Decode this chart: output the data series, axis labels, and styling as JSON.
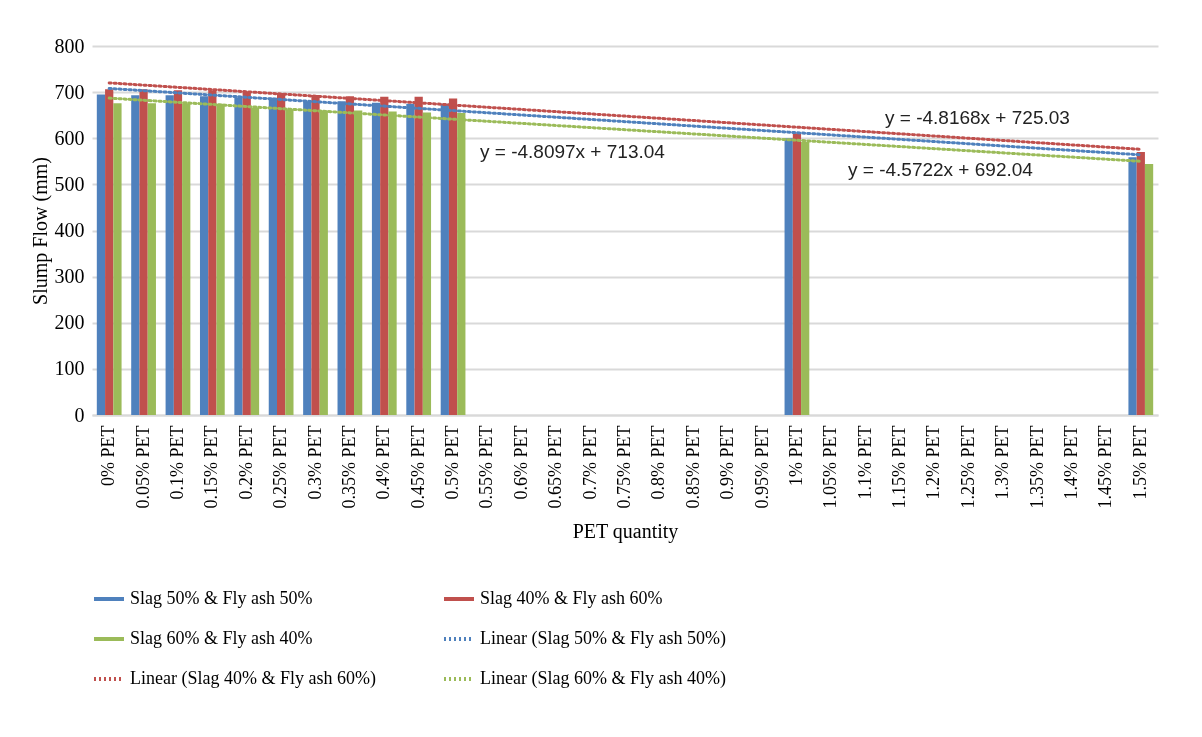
{
  "chart_data": {
    "type": "bar",
    "xlabel": "PET quantity",
    "ylabel": "Slump Flow (mm)",
    "categories": [
      "0% PET",
      "0.05% PET",
      "0.1% PET",
      "0.15% PET",
      "0.2% PET",
      "0.25% PET",
      "0.3% PET",
      "0.35% PET",
      "0.4% PET",
      "0.45% PET",
      "0.5% PET",
      "0.55% PET",
      "0.6% PET",
      "0.65% PET",
      "0.7% PET",
      "0.75% PET",
      "0.8% PET",
      "0.85% PET",
      "0.9% PET",
      "0.95% PET",
      "1% PET",
      "1.05% PET",
      "1.1% PET",
      "1.15% PET",
      "1.2% PET",
      "1.25% PET",
      "1.3% PET",
      "1.35% PET",
      "1.4% PET",
      "1.45% PET",
      "1.5% PET"
    ],
    "series": [
      {
        "name": "Slag 50% & Fly ash 50%",
        "color": "#4f81bd",
        "values": [
          695,
          693,
          693,
          691,
          689,
          688,
          680,
          680,
          677,
          675,
          675,
          null,
          null,
          null,
          null,
          null,
          null,
          null,
          null,
          null,
          600,
          null,
          null,
          null,
          null,
          null,
          null,
          null,
          null,
          null,
          559
        ]
      },
      {
        "name": "Slag 40% & Fly ash 60%",
        "color": "#c0504d",
        "values": [
          706,
          706,
          704,
          704,
          701,
          698,
          694,
          691,
          690,
          690,
          686,
          null,
          null,
          null,
          null,
          null,
          null,
          null,
          null,
          null,
          611,
          null,
          null,
          null,
          null,
          null,
          null,
          null,
          null,
          null,
          570
        ]
      },
      {
        "name": "Slag 60% & Fly ash 40%",
        "color": "#9bbb59",
        "values": [
          676,
          676,
          676,
          675,
          666,
          663,
          660,
          660,
          658,
          656,
          655,
          null,
          null,
          null,
          null,
          null,
          null,
          null,
          null,
          null,
          592,
          null,
          null,
          null,
          null,
          null,
          null,
          null,
          null,
          null,
          544
        ]
      },
      {
        "name": "Linear (Slag 50% & Fly ash 50%)",
        "type": "line",
        "line_style": "dotted",
        "color": "#4f81bd",
        "x": [
          "0% PET",
          "1.5% PET"
        ],
        "values": [
          708,
          564
        ]
      },
      {
        "name": "Linear (Slag 40% & Fly ash 60%)",
        "type": "line",
        "line_style": "dotted",
        "color": "#c0504d",
        "x": [
          "0% PET",
          "1.5% PET"
        ],
        "values": [
          720,
          576
        ]
      },
      {
        "name": "Linear (Slag 60% & Fly ash 40%)",
        "type": "line",
        "line_style": "dotted",
        "color": "#9bbb59",
        "x": [
          "0% PET",
          "1.5% PET"
        ],
        "values": [
          687,
          550
        ]
      }
    ],
    "ylim": [
      0,
      800
    ],
    "yticks": [
      0,
      100,
      200,
      300,
      400,
      500,
      600,
      700,
      800
    ],
    "grid": "y",
    "legend": "bottom",
    "marker": "none",
    "annotations": [
      "y = -4.8097x + 713.04",
      "y = -4.8168x + 725.03",
      "y = -4.5722x + 692.04"
    ]
  }
}
